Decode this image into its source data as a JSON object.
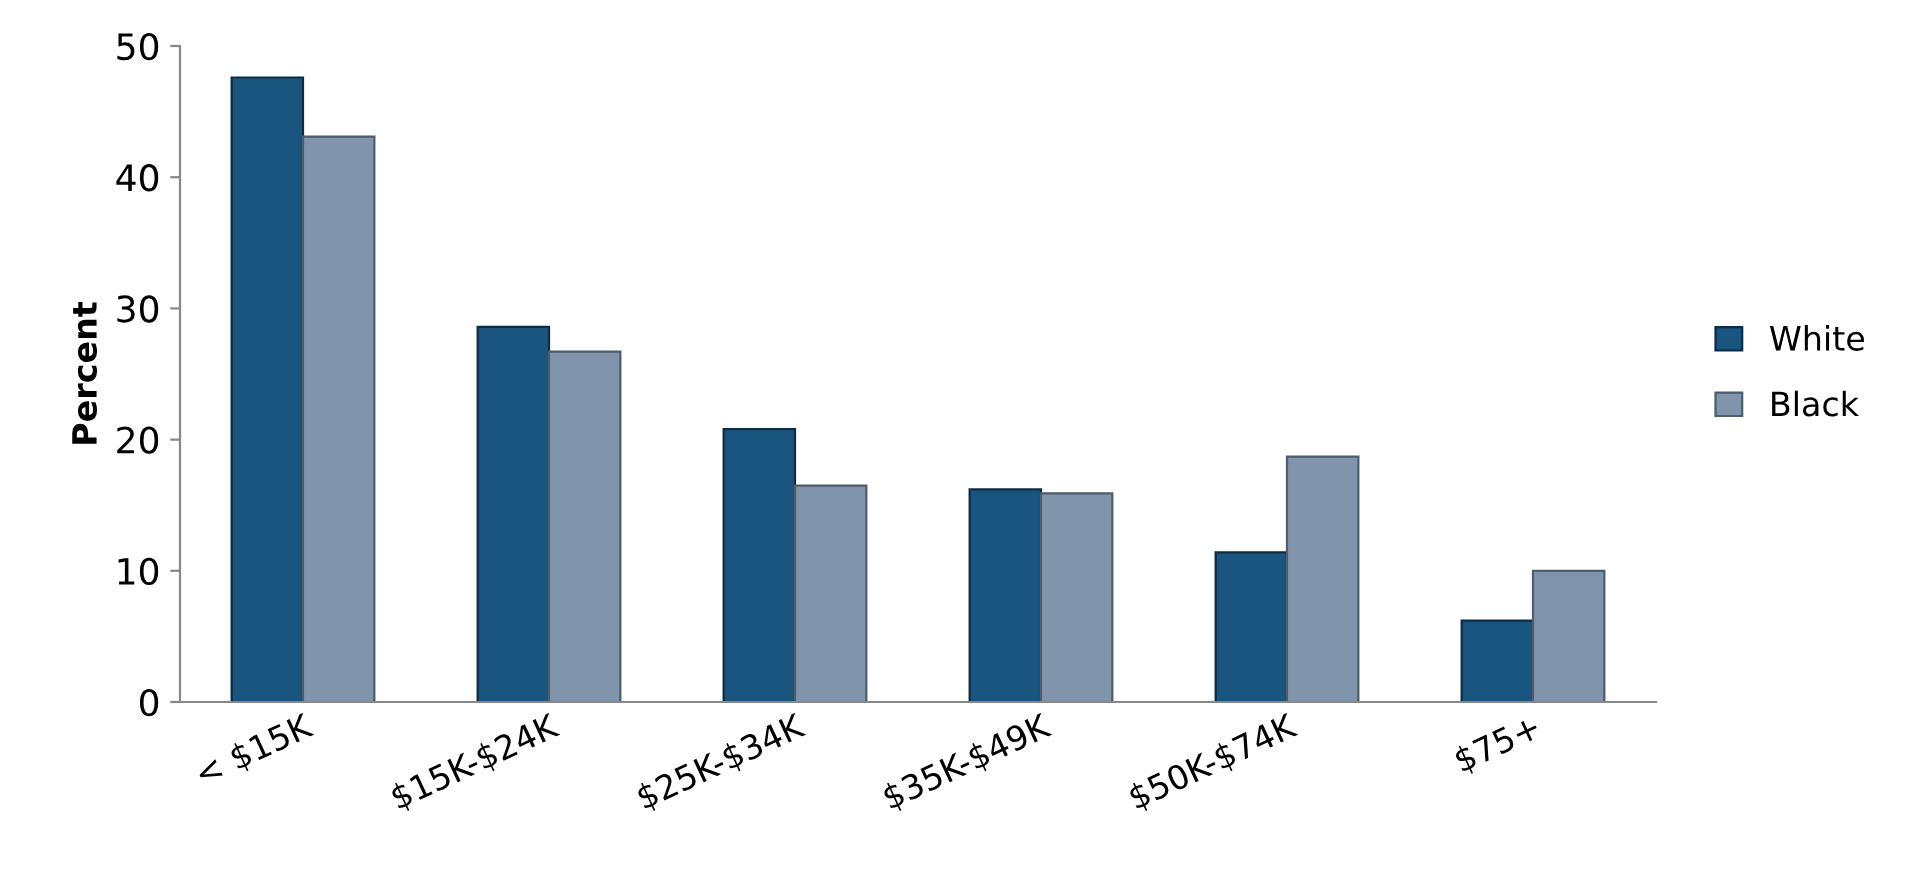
{
  "chart_data": {
    "type": "bar",
    "ylabel": "Percent",
    "categories": [
      "< $15K",
      "$15K-$24K",
      "$25K-$34K",
      "$35K-$49K",
      "$50K-$74K",
      "$75+"
    ],
    "series": [
      {
        "name": "White",
        "color": "#1a5580",
        "values": [
          47.6,
          28.6,
          20.8,
          16.2,
          11.4,
          6.2
        ]
      },
      {
        "name": "Black",
        "color": "#8094ab",
        "values": [
          43.1,
          26.7,
          16.5,
          15.9,
          18.7,
          10.0
        ]
      }
    ],
    "ylim": [
      0,
      50
    ],
    "yticks": [
      0,
      10,
      20,
      30,
      40,
      50
    ],
    "grid": false,
    "legend": "right"
  }
}
